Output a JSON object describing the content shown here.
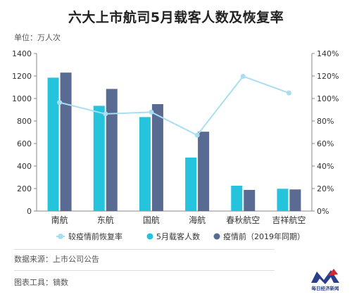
{
  "header": {
    "title": "六大上市航司5月载客人数及恢复率",
    "unit": "单位：万人次"
  },
  "footer": {
    "source": "数据来源：上市公司公告",
    "tool": "图表工具：镝数",
    "logo_text": "每日经济新闻"
  },
  "colors": {
    "may": "#26c3dd",
    "pre": "#5a6b93",
    "rate": "#a9def2",
    "axis": "#888888",
    "grid": "#e6e6e6"
  },
  "chart_data": {
    "type": "bar",
    "categories": [
      "南航",
      "东航",
      "国航",
      "海航",
      "春秋航空",
      "吉祥航空"
    ],
    "series": [
      {
        "name": "5月载客人数",
        "type": "bar",
        "axis": "left",
        "values": [
          1185,
          935,
          835,
          475,
          225,
          198
        ]
      },
      {
        "name": "疫情前（2019年同期）",
        "type": "bar",
        "axis": "left",
        "values": [
          1230,
          1085,
          950,
          705,
          188,
          192
        ]
      },
      {
        "name": "较疫情前恢复率",
        "type": "line",
        "axis": "right",
        "values": [
          96.5,
          86.3,
          87.9,
          67.4,
          119.7,
          104.9
        ]
      }
    ],
    "ylim": [
      0,
      1400
    ],
    "yticks": [
      "0",
      "200",
      "400",
      "600",
      "800",
      "1000",
      "1200",
      "1400"
    ],
    "y2lim": [
      0,
      140
    ],
    "y2ticks": [
      "0%",
      "20%",
      "40%",
      "60%",
      "80%",
      "100%",
      "120%",
      "140%"
    ],
    "legend": [
      "较疫情前恢复率",
      "5月载客人数",
      "疫情前（2019年同期）"
    ],
    "legend_position": "bottom",
    "grid": false
  }
}
